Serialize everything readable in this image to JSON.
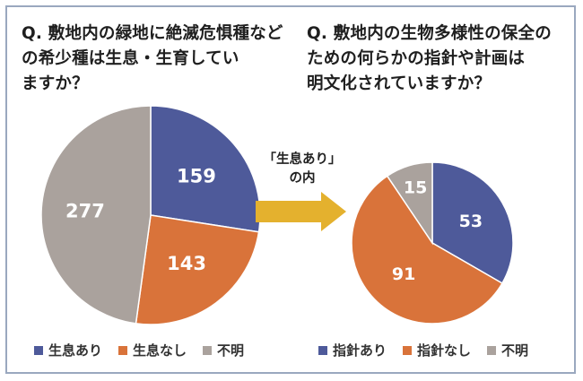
{
  "colors": {
    "blue": "#4e5a9a",
    "orange": "#d9733a",
    "gray": "#aaa29d",
    "arrow": "#e4b12e"
  },
  "arrow_label": {
    "line1": "「生息あり」",
    "line2": "の内"
  },
  "chart_data": [
    {
      "type": "pie",
      "title": "Q. 敷地内の緑地に絶滅危惧種などの希少種は生息・生育していますか？",
      "labels": [
        "生息あり",
        "生息なし",
        "不明"
      ],
      "values": [
        159,
        143,
        277
      ],
      "legend": "bottom"
    },
    {
      "type": "pie",
      "title": "Q. 敷地内の生物多様性の保全のための何らかの指針や計画は明文化されていますか？",
      "labels": [
        "指針あり",
        "指針なし",
        "不明"
      ],
      "values": [
        53,
        91,
        15
      ],
      "legend": "bottom"
    }
  ]
}
